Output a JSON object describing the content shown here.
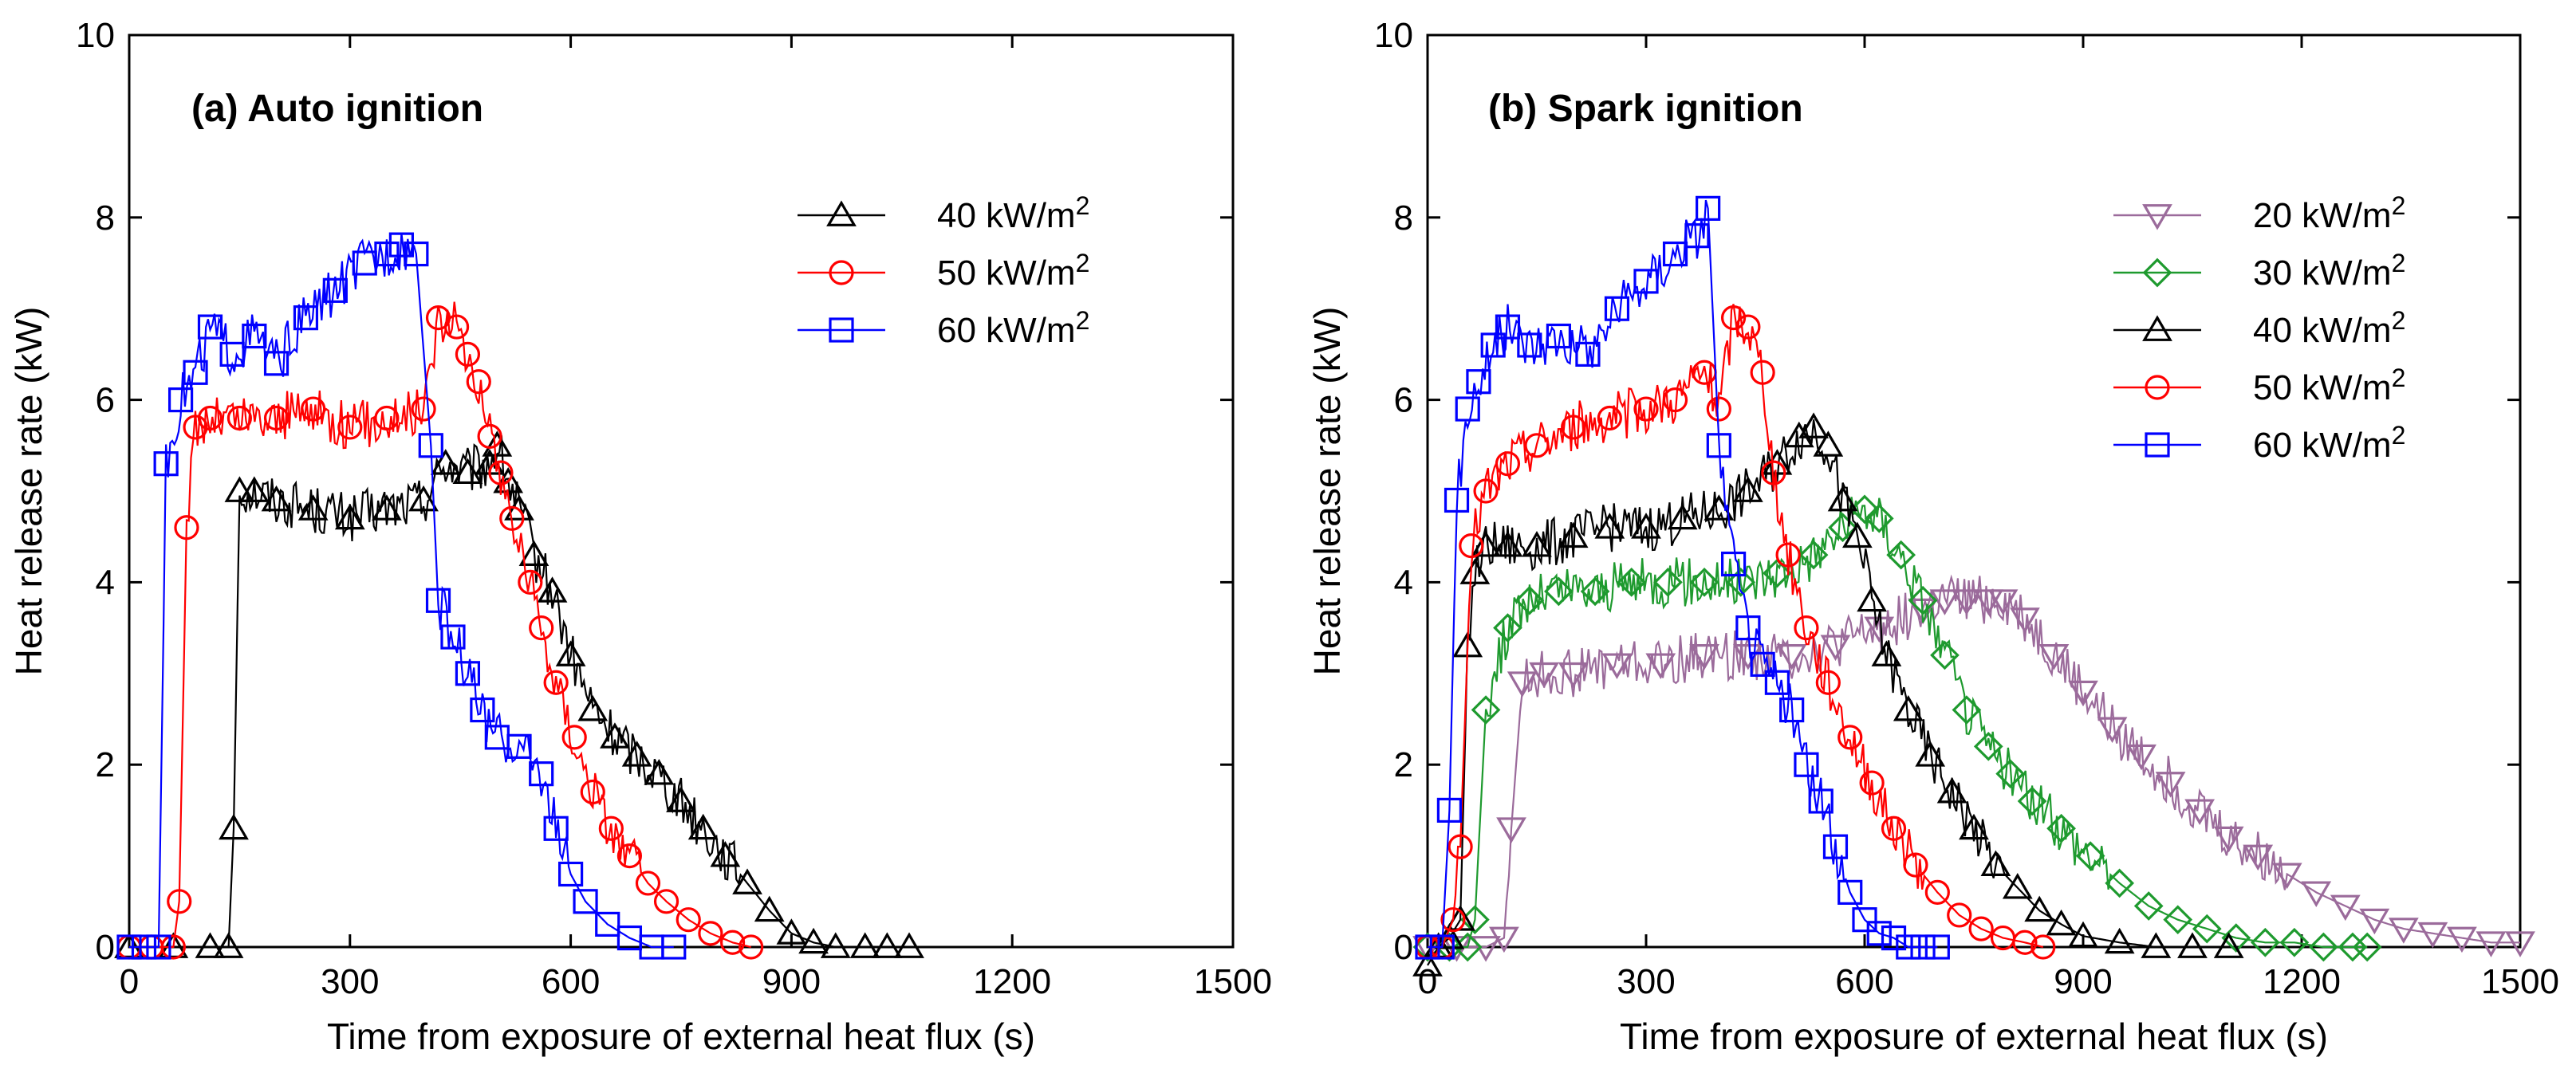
{
  "chart_data": [
    {
      "type": "line",
      "title": "(a) Auto ignition",
      "xlabel": "Time from exposure of external heat flux (s)",
      "ylabel": "Heat release rate (kW)",
      "xlim": [
        0,
        1500
      ],
      "ylim": [
        0,
        10
      ],
      "xticks": [
        0,
        300,
        600,
        900,
        1200,
        1500
      ],
      "yticks": [
        0,
        2,
        4,
        6,
        8,
        10
      ],
      "legend_position": "top-right",
      "series": [
        {
          "name": "40 kW/m2",
          "legend_main": "40 kW/m",
          "legend_sup": "2",
          "color": "#000000",
          "marker": "triangle-up",
          "x": [
            0,
            60,
            110,
            135,
            142,
            150,
            170,
            200,
            250,
            300,
            350,
            400,
            430,
            460,
            490,
            500,
            515,
            530,
            550,
            575,
            600,
            630,
            660,
            690,
            720,
            750,
            780,
            810,
            840,
            870,
            900,
            930,
            960,
            1000,
            1030,
            1060
          ],
          "y": [
            0,
            0,
            0,
            0,
            1.3,
            5.0,
            5.0,
            4.9,
            4.8,
            4.7,
            4.8,
            4.9,
            5.3,
            5.2,
            5.3,
            5.5,
            5.1,
            4.8,
            4.3,
            3.9,
            3.2,
            2.6,
            2.3,
            2.1,
            1.9,
            1.6,
            1.3,
            1.0,
            0.7,
            0.4,
            0.15,
            0.05,
            0,
            0,
            0,
            0
          ]
        },
        {
          "name": "50 kW/m2",
          "legend_main": "50 kW/m",
          "legend_sup": "2",
          "color": "#ff0000",
          "marker": "circle",
          "x": [
            0,
            30,
            60,
            68,
            78,
            90,
            110,
            150,
            200,
            250,
            300,
            350,
            400,
            420,
            445,
            460,
            475,
            490,
            505,
            520,
            545,
            560,
            580,
            605,
            630,
            655,
            680,
            705,
            730,
            760,
            790,
            820,
            845
          ],
          "y": [
            0,
            0,
            0,
            0.5,
            4.6,
            5.7,
            5.8,
            5.8,
            5.8,
            5.9,
            5.7,
            5.8,
            5.9,
            6.9,
            6.8,
            6.5,
            6.2,
            5.6,
            5.2,
            4.7,
            4.0,
            3.5,
            2.9,
            2.3,
            1.7,
            1.3,
            1.0,
            0.7,
            0.5,
            0.3,
            0.15,
            0.05,
            0
          ]
        },
        {
          "name": "60 kW/m2",
          "legend_main": "60 kW/m",
          "legend_sup": "2",
          "color": "#0000ff",
          "marker": "square",
          "x": [
            0,
            20,
            40,
            50,
            70,
            90,
            110,
            140,
            170,
            200,
            240,
            280,
            320,
            350,
            370,
            390,
            410,
            420,
            440,
            460,
            480,
            500,
            530,
            560,
            580,
            600,
            620,
            650,
            680,
            710,
            740
          ],
          "y": [
            0,
            0,
            0,
            5.3,
            6.0,
            6.3,
            6.8,
            6.5,
            6.7,
            6.4,
            6.9,
            7.2,
            7.5,
            7.6,
            7.7,
            7.6,
            5.5,
            3.8,
            3.4,
            3.0,
            2.6,
            2.3,
            2.2,
            1.9,
            1.3,
            0.8,
            0.5,
            0.25,
            0.1,
            0,
            0
          ]
        }
      ]
    },
    {
      "type": "line",
      "title": "(b) Spark ignition",
      "xlabel": "Time from exposure of external heat flux (s)",
      "ylabel": "Heat release rate (kW)",
      "xlim": [
        0,
        1500
      ],
      "ylim": [
        0,
        10
      ],
      "xticks": [
        0,
        300,
        600,
        900,
        1200,
        1500
      ],
      "yticks": [
        0,
        2,
        4,
        6,
        8,
        10
      ],
      "legend_position": "top-right",
      "series": [
        {
          "name": "20 kW/m2",
          "legend_main": "20 kW/m",
          "legend_sup": "2",
          "color": "#9b6b9b",
          "marker": "triangle-down",
          "x": [
            0,
            40,
            80,
            105,
            115,
            130,
            160,
            200,
            260,
            320,
            380,
            440,
            500,
            560,
            620,
            680,
            710,
            740,
            770,
            790,
            820,
            860,
            900,
            940,
            980,
            1020,
            1060,
            1100,
            1140,
            1180,
            1220,
            1260,
            1300,
            1340,
            1380,
            1420,
            1460,
            1500
          ],
          "y": [
            0,
            0,
            0,
            0.1,
            1.3,
            2.9,
            3.0,
            3.0,
            3.1,
            3.1,
            3.2,
            3.2,
            3.2,
            3.3,
            3.5,
            3.7,
            3.8,
            3.8,
            3.8,
            3.8,
            3.6,
            3.2,
            2.8,
            2.4,
            2.1,
            1.8,
            1.5,
            1.2,
            1.0,
            0.8,
            0.6,
            0.45,
            0.3,
            0.2,
            0.15,
            0.1,
            0.05,
            0.05
          ]
        },
        {
          "name": "30 kW/m2",
          "legend_main": "30 kW/m",
          "legend_sup": "2",
          "color": "#1e9a2e",
          "marker": "diamond",
          "x": [
            0,
            30,
            55,
            65,
            80,
            110,
            140,
            180,
            230,
            280,
            330,
            380,
            430,
            480,
            530,
            570,
            600,
            620,
            650,
            680,
            710,
            740,
            770,
            800,
            830,
            870,
            910,
            950,
            990,
            1030,
            1070,
            1110,
            1150,
            1190,
            1230,
            1270,
            1290
          ],
          "y": [
            0,
            0,
            0,
            0.3,
            2.6,
            3.5,
            3.8,
            3.9,
            3.9,
            4.0,
            4.0,
            4.0,
            4.0,
            4.1,
            4.3,
            4.6,
            4.8,
            4.7,
            4.3,
            3.8,
            3.2,
            2.6,
            2.2,
            1.9,
            1.6,
            1.3,
            1.0,
            0.7,
            0.45,
            0.3,
            0.2,
            0.1,
            0.05,
            0.05,
            0,
            0,
            0
          ]
        },
        {
          "name": "40 kW/m2",
          "legend_main": "40 kW/m",
          "legend_sup": "2",
          "color": "#000000",
          "marker": "triangle-up",
          "x": [
            0,
            15,
            30,
            45,
            55,
            65,
            80,
            110,
            150,
            200,
            250,
            300,
            350,
            400,
            440,
            480,
            510,
            530,
            550,
            570,
            590,
            610,
            630,
            660,
            690,
            720,
            750,
            780,
            810,
            840,
            870,
            900,
            950,
            1000,
            1050,
            1100
          ],
          "y": [
            -0.2,
            0,
            0.1,
            0.3,
            3.3,
            4.1,
            4.4,
            4.4,
            4.4,
            4.5,
            4.6,
            4.6,
            4.7,
            4.8,
            5.0,
            5.3,
            5.6,
            5.7,
            5.5,
            4.9,
            4.5,
            3.8,
            3.2,
            2.6,
            2.1,
            1.7,
            1.3,
            0.9,
            0.65,
            0.4,
            0.25,
            0.12,
            0.05,
            0,
            0,
            0
          ]
        },
        {
          "name": "50 kW/m2",
          "legend_main": "50 kW/m",
          "legend_sup": "2",
          "color": "#ff0000",
          "marker": "circle",
          "x": [
            0,
            20,
            35,
            45,
            60,
            80,
            110,
            150,
            200,
            250,
            300,
            340,
            380,
            400,
            420,
            440,
            460,
            475,
            495,
            520,
            550,
            580,
            610,
            640,
            670,
            700,
            730,
            760,
            790,
            820,
            845
          ],
          "y": [
            0,
            0,
            0.3,
            1.1,
            4.4,
            5.0,
            5.3,
            5.5,
            5.7,
            5.8,
            5.9,
            6.0,
            6.3,
            5.9,
            6.9,
            6.8,
            6.3,
            5.2,
            4.3,
            3.5,
            2.9,
            2.3,
            1.8,
            1.3,
            0.9,
            0.6,
            0.35,
            0.2,
            0.1,
            0.05,
            0
          ]
        },
        {
          "name": "60 kW/m2",
          "legend_main": "60 kW/m",
          "legend_sup": "2",
          "color": "#0000ff",
          "marker": "square",
          "x": [
            0,
            20,
            30,
            40,
            55,
            70,
            90,
            110,
            140,
            180,
            220,
            260,
            300,
            340,
            370,
            385,
            400,
            420,
            440,
            460,
            480,
            500,
            520,
            540,
            560,
            580,
            600,
            620,
            640,
            660,
            680,
            700
          ],
          "y": [
            0,
            0,
            1.5,
            4.9,
            5.9,
            6.2,
            6.6,
            6.8,
            6.6,
            6.7,
            6.5,
            7.0,
            7.3,
            7.6,
            7.8,
            8.1,
            5.5,
            4.2,
            3.5,
            3.1,
            2.9,
            2.6,
            2.0,
            1.6,
            1.1,
            0.6,
            0.3,
            0.15,
            0.1,
            0,
            0,
            0
          ]
        }
      ]
    }
  ]
}
